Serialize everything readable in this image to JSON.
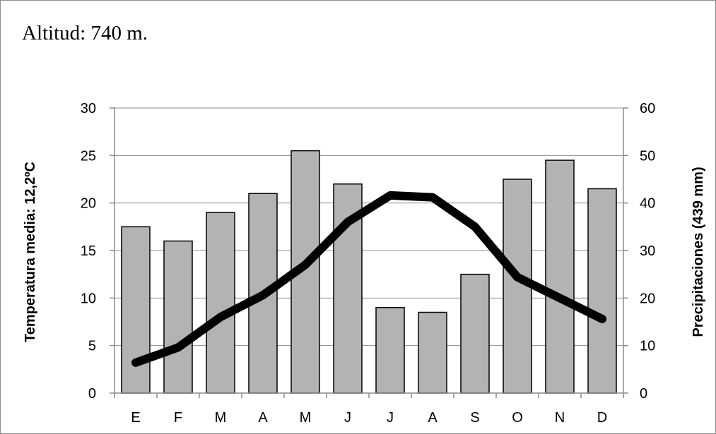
{
  "header": {
    "text": "Altitud: 740 m."
  },
  "chart_data": {
    "type": "bar",
    "categories": [
      "E",
      "F",
      "M",
      "A",
      "M",
      "J",
      "J",
      "A",
      "S",
      "O",
      "N",
      "D"
    ],
    "series": [
      {
        "name": "Precipitaciones",
        "type": "bar",
        "axis": "right",
        "color": "#b3b3b3",
        "values": [
          35,
          32,
          38,
          42,
          51,
          44,
          18,
          17,
          25,
          45,
          49,
          43
        ]
      },
      {
        "name": "Temperatura",
        "type": "line",
        "axis": "left",
        "color": "#000000",
        "values": [
          3.2,
          4.8,
          8.0,
          10.3,
          13.5,
          18.0,
          20.8,
          20.6,
          17.5,
          12.2,
          10.0,
          7.8
        ]
      }
    ],
    "ylabel": "Temperatura media: 12,2ºC",
    "y2label": "Precipitaciones (439 mm)",
    "ylim": [
      0,
      30
    ],
    "y2lim": [
      0,
      60
    ],
    "yticks": [
      "0",
      "5",
      "10",
      "15",
      "20",
      "25",
      "30"
    ],
    "y2ticks": [
      "0",
      "10",
      "20",
      "30",
      "40",
      "50",
      "60"
    ],
    "grid": true,
    "legend": "none"
  }
}
